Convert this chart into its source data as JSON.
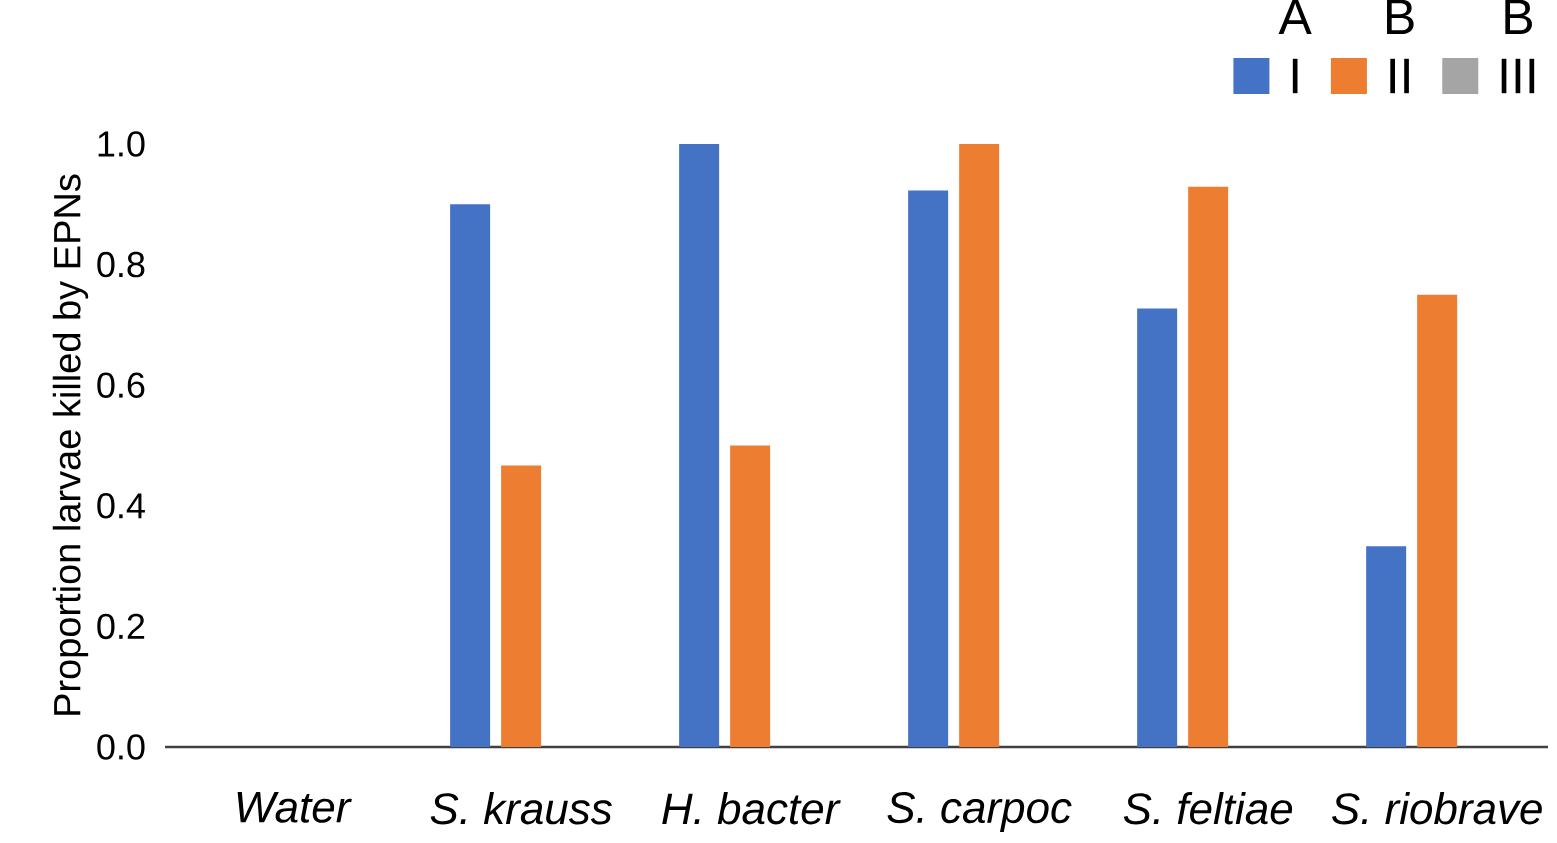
{
  "chart_data": {
    "type": "bar",
    "ylabel": "Proportion larvae killed by EPNs",
    "categories": [
      "Water",
      "S. krauss",
      "H. bacter",
      "S. carpoc",
      "S. feltiae",
      "S. riobrave"
    ],
    "series": [
      {
        "name": "I",
        "color": "#4472c4",
        "values": [
          0,
          0.9,
          1.0,
          0.923,
          0.727,
          0.333
        ]
      },
      {
        "name": "II",
        "color": "#ed7d31",
        "values": [
          0,
          0.467,
          0.5,
          1.0,
          0.929,
          0.75
        ]
      },
      {
        "name": "III",
        "color": "#a5a5a5",
        "values": [
          0,
          0,
          0,
          0,
          0,
          0
        ]
      }
    ],
    "ylim": [
      0,
      1.0
    ],
    "yticks": [
      {
        "value": 0,
        "label": "0.0"
      },
      {
        "value": 0.2,
        "label": "0.2"
      },
      {
        "value": 0.4,
        "label": "0.4"
      },
      {
        "value": 0.6,
        "label": "0.6"
      },
      {
        "value": 0.8,
        "label": "0.8"
      },
      {
        "value": 1.0,
        "label": "1.0"
      }
    ],
    "legend": "top right",
    "annotations": [
      "A",
      "B",
      "B"
    ]
  }
}
